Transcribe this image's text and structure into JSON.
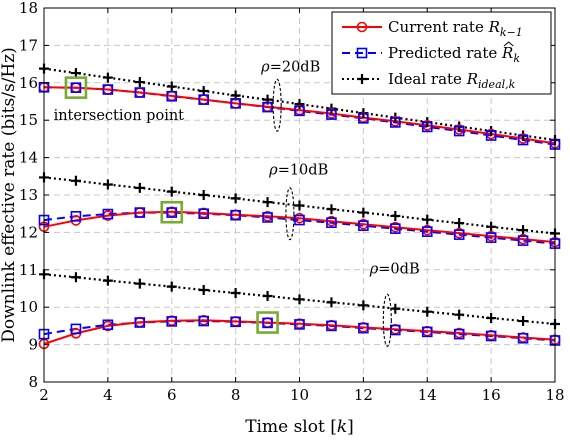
{
  "chart_data": {
    "type": "line",
    "xlabel": "Time slot [k]",
    "ylabel": "Downlink effective rate (bits/s/Hz)",
    "xlim": [
      2,
      18
    ],
    "ylim": [
      8,
      18
    ],
    "xticks": [
      "2",
      "4",
      "6",
      "8",
      "10",
      "12",
      "14",
      "16",
      "18"
    ],
    "yticks": [
      "8",
      "9",
      "10",
      "11",
      "12",
      "13",
      "14",
      "15",
      "16",
      "17",
      "18"
    ],
    "grid": true,
    "legend_position": "top-right",
    "x": [
      2,
      3,
      4,
      5,
      6,
      7,
      8,
      9,
      10,
      11,
      12,
      13,
      14,
      15,
      16,
      17,
      18
    ],
    "groups": [
      {
        "label": "ρ=20dB",
        "current": [
          15.88,
          15.87,
          15.82,
          15.74,
          15.65,
          15.55,
          15.45,
          15.36,
          15.27,
          15.18,
          15.07,
          14.97,
          14.86,
          14.75,
          14.63,
          14.51,
          14.38
        ],
        "predicted": [
          15.88,
          15.87,
          15.82,
          15.74,
          15.64,
          15.55,
          15.45,
          15.35,
          15.25,
          15.15,
          15.05,
          14.94,
          14.82,
          14.71,
          14.59,
          14.47,
          14.35
        ],
        "ideal": [
          16.38,
          16.26,
          16.14,
          16.02,
          15.9,
          15.78,
          15.66,
          15.55,
          15.43,
          15.31,
          15.19,
          15.07,
          14.95,
          14.83,
          14.71,
          14.59,
          14.47
        ]
      },
      {
        "label": "ρ=10dB",
        "current": [
          12.15,
          12.32,
          12.45,
          12.53,
          12.55,
          12.52,
          12.47,
          12.43,
          12.38,
          12.3,
          12.22,
          12.14,
          12.06,
          11.98,
          11.9,
          11.82,
          11.74
        ],
        "predicted": [
          12.33,
          12.43,
          12.49,
          12.53,
          12.53,
          12.5,
          12.46,
          12.4,
          12.33,
          12.26,
          12.18,
          12.1,
          12.02,
          11.94,
          11.86,
          11.78,
          11.7
        ],
        "ideal": [
          13.47,
          13.38,
          13.28,
          13.19,
          13.09,
          13.0,
          12.91,
          12.81,
          12.72,
          12.62,
          12.53,
          12.44,
          12.34,
          12.25,
          12.15,
          12.06,
          11.97
        ]
      },
      {
        "label": "ρ=0dB",
        "current": [
          9.02,
          9.3,
          9.5,
          9.6,
          9.64,
          9.65,
          9.62,
          9.59,
          9.56,
          9.52,
          9.46,
          9.41,
          9.36,
          9.31,
          9.25,
          9.19,
          9.13
        ],
        "predicted": [
          9.28,
          9.42,
          9.53,
          9.59,
          9.62,
          9.63,
          9.61,
          9.58,
          9.54,
          9.5,
          9.44,
          9.39,
          9.34,
          9.28,
          9.23,
          9.17,
          9.11
        ],
        "ideal": [
          10.88,
          10.8,
          10.71,
          10.63,
          10.55,
          10.46,
          10.38,
          10.3,
          10.21,
          10.13,
          10.05,
          9.96,
          9.88,
          9.8,
          9.71,
          9.63,
          9.55
        ]
      }
    ],
    "series_styles": {
      "current": {
        "color": "#ff0000",
        "marker": "circle",
        "line": "solid"
      },
      "predicted": {
        "color": "#0000ff",
        "marker": "square",
        "line": "dashed"
      },
      "ideal": {
        "color": "#000000",
        "marker": "plus",
        "line": "dotted"
      }
    },
    "intersection_points": [
      {
        "x": 3,
        "y": 15.87
      },
      {
        "x": 6,
        "y": 12.54
      },
      {
        "x": 9,
        "y": 9.59
      }
    ],
    "intersection_color": "#77ac30",
    "annotations": [
      {
        "text": "ρ=20dB",
        "x": 8.8,
        "y": 16.3,
        "ellipse_at": [
          9.3,
          15.4
        ]
      },
      {
        "text": "ρ=10dB",
        "x": 9.05,
        "y": 13.55,
        "ellipse_at": [
          9.7,
          12.5
        ]
      },
      {
        "text": "ρ=0dB",
        "x": 12.2,
        "y": 10.9,
        "ellipse_at": [
          12.75,
          9.65
        ]
      },
      {
        "text": "intersection point",
        "x": 2.3,
        "y": 15.0
      }
    ],
    "legend": [
      {
        "key": "current",
        "label": "Current rate R",
        "sub": "k−1",
        "hat": false
      },
      {
        "key": "predicted",
        "label": "Predicted rate R",
        "sub": "k",
        "hat": true
      },
      {
        "key": "ideal",
        "label": "Ideal rate R",
        "sub": "ideal,k",
        "hat": false
      }
    ]
  }
}
